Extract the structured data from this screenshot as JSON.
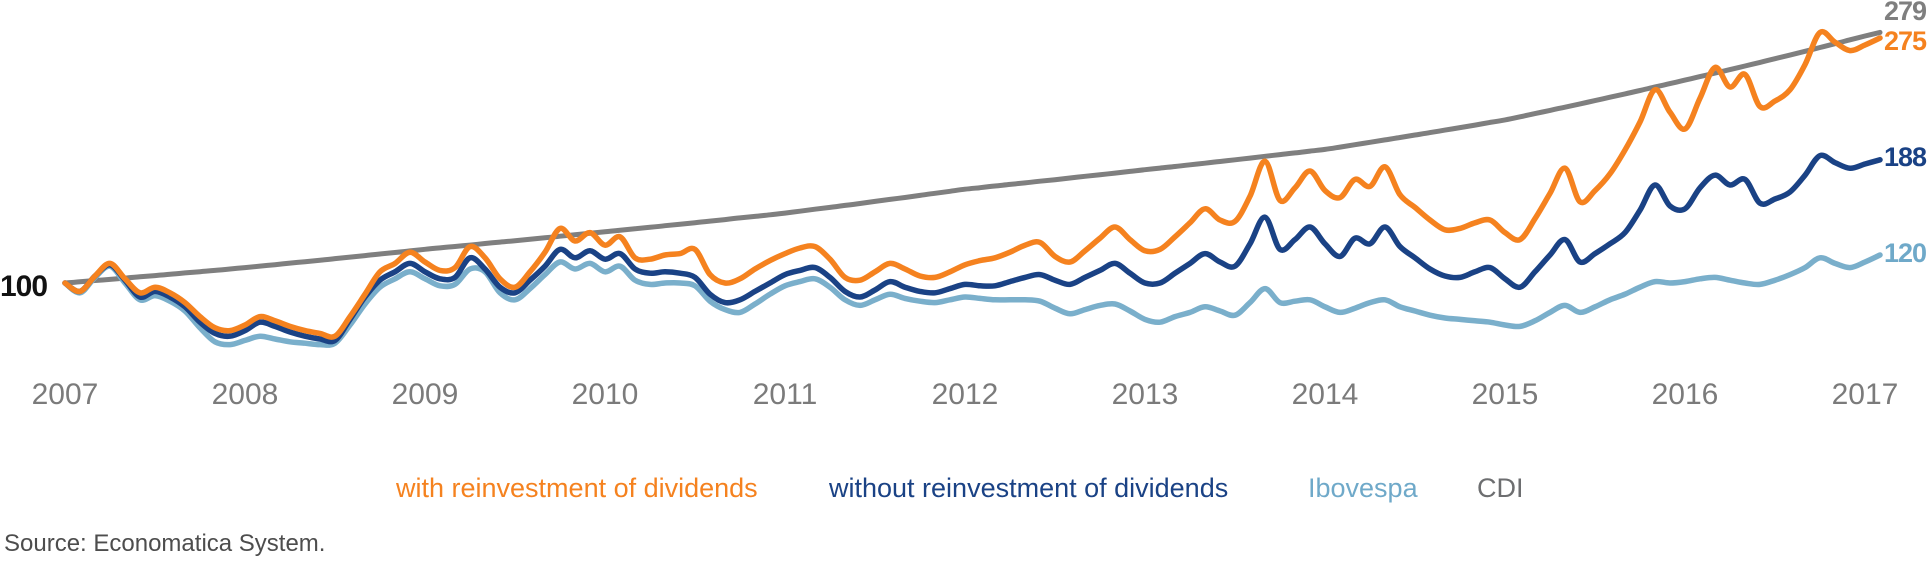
{
  "chart_data": {
    "type": "line",
    "title": "",
    "x_unit": "months",
    "x_range": [
      "2007",
      "2017"
    ],
    "x_tick_labels": [
      "2007",
      "2008",
      "2009",
      "2010",
      "2011",
      "2012",
      "2013",
      "2014",
      "2015",
      "2016",
      "2017"
    ],
    "baseline_label": "100",
    "grid": "off",
    "legend_position": "bottom",
    "series": [
      {
        "name": "CDI",
        "color": "#7f7f7f",
        "end_label": "279",
        "end_value": 279,
        "values": [
          100,
          100.9,
          101.8,
          102.6,
          103.5,
          104.4,
          105.3,
          106.2,
          107.2,
          108.1,
          109,
          110,
          111,
          112.1,
          113.1,
          114.2,
          115.2,
          116.3,
          117.4,
          118.5,
          119.6,
          120.7,
          121.8,
          122.9,
          124.1,
          125.1,
          126.1,
          127.1,
          128.2,
          129.2,
          130.2,
          131.3,
          132.3,
          133.4,
          134.5,
          135.5,
          136.6,
          137.7,
          138.7,
          139.8,
          140.9,
          142,
          143.1,
          144.2,
          145.3,
          146.5,
          147.6,
          148.7,
          149.9,
          151.3,
          152.7,
          154,
          155.4,
          156.8,
          158.3,
          159.7,
          161.1,
          162.6,
          164.1,
          165.5,
          167,
          168.1,
          169.3,
          170.4,
          171.5,
          172.7,
          173.8,
          175,
          176.2,
          177.3,
          178.5,
          179.7,
          180.9,
          182.1,
          183.2,
          184.4,
          185.6,
          186.8,
          188,
          189.2,
          190.5,
          191.7,
          192.9,
          194.2,
          195.4,
          197.1,
          198.8,
          200.5,
          202.2,
          203.9,
          205.7,
          207.4,
          209.2,
          211,
          212.8,
          214.7,
          216.5,
          218.7,
          221,
          223.3,
          225.6,
          227.9,
          230.3,
          232.7,
          235.1,
          237.5,
          240,
          242.4,
          244.9,
          247.4,
          249.9,
          252.4,
          255,
          257.6,
          260.2,
          262.8,
          265.5,
          268.2,
          270.9,
          273.7,
          276.4,
          279
        ]
      },
      {
        "name": "Ibovespa",
        "color": "#7aafcb",
        "end_label": "120",
        "end_value": 120,
        "values": [
          100,
          93,
          104,
          112,
          100,
          88,
          91,
          87,
          80,
          68,
          58,
          56,
          59,
          62,
          60,
          58,
          57,
          56,
          57,
          70,
          85,
          97,
          103,
          108,
          103,
          98,
          99,
          110,
          108,
          93,
          88,
          96,
          106,
          115,
          110,
          114,
          108,
          112,
          102,
          99,
          100,
          100,
          98,
          87,
          81,
          79,
          85,
          92,
          98,
          101,
          103,
          97,
          88,
          84,
          88,
          92,
          89,
          87,
          86,
          88,
          90,
          89,
          88,
          88,
          88,
          87,
          82,
          78,
          81,
          84,
          85,
          80,
          74,
          72,
          76,
          79,
          83,
          80,
          77,
          86,
          96,
          86,
          87,
          88,
          83,
          79,
          82,
          86,
          88,
          83,
          80,
          77,
          75,
          74,
          73,
          72,
          70,
          69,
          73,
          79,
          84,
          79,
          83,
          88,
          92,
          97,
          101,
          100,
          101,
          103,
          104,
          102,
          100,
          99,
          102,
          106,
          111,
          118,
          114,
          111,
          115,
          120
        ]
      },
      {
        "name": "without reinvestment of dividends",
        "color": "#1a4285",
        "end_label": "188",
        "end_value": 188,
        "values": [
          100,
          94,
          105,
          113,
          102,
          90,
          94,
          90,
          83,
          72,
          64,
          62,
          66,
          72,
          69,
          65,
          62,
          60,
          59,
          74,
          90,
          102,
          108,
          114,
          108,
          103,
          104,
          118,
          110,
          97,
          93,
          102,
          112,
          124,
          118,
          123,
          117,
          121,
          110,
          107,
          108,
          107,
          104,
          92,
          86,
          88,
          94,
          100,
          106,
          109,
          111,
          104,
          94,
          90,
          95,
          101,
          97,
          94,
          93,
          96,
          99,
          98,
          98,
          101,
          104,
          106,
          102,
          99,
          104,
          109,
          114,
          107,
          100,
          100,
          107,
          114,
          121,
          115,
          112,
          128,
          147,
          124,
          131,
          140,
          128,
          119,
          132,
          128,
          140,
          126,
          118,
          110,
          105,
          104,
          108,
          111,
          103,
          97,
          108,
          120,
          131,
          115,
          121,
          128,
          136,
          152,
          170,
          155,
          153,
          168,
          177,
          170,
          174,
          157,
          160,
          165,
          177,
          191,
          186,
          182,
          185,
          188
        ]
      },
      {
        "name": "with reinvestment of dividends",
        "color": "#f5821f",
        "end_label": "275",
        "end_value": 275,
        "values": [
          100,
          94,
          105,
          114,
          103,
          93,
          97,
          93,
          86,
          76,
          68,
          66,
          70,
          76,
          73,
          69,
          66,
          64,
          62,
          76,
          92,
          108,
          114,
          122,
          115,
          109,
          111,
          126,
          118,
          103,
          97,
          108,
          122,
          139,
          130,
          136,
          127,
          133,
          118,
          117,
          120,
          121,
          124,
          106,
          100,
          103,
          110,
          116,
          121,
          125,
          126,
          117,
          104,
          102,
          108,
          114,
          110,
          105,
          104,
          108,
          113,
          116,
          118,
          122,
          127,
          129,
          119,
          115,
          123,
          132,
          140,
          131,
          123,
          124,
          133,
          143,
          153,
          145,
          144,
          162,
          187,
          159,
          168,
          180,
          166,
          161,
          174,
          169,
          183,
          163,
          154,
          145,
          138,
          139,
          143,
          145,
          136,
          131,
          146,
          164,
          182,
          158,
          166,
          178,
          195,
          215,
          238,
          222,
          210,
          232,
          254,
          240,
          249,
          226,
          230,
          238,
          256,
          279,
          272,
          266,
          270,
          275
        ]
      }
    ],
    "legend": [
      {
        "label": "with reinvestment of dividends",
        "color": "#f5821f"
      },
      {
        "label": "without reinvestment of dividends",
        "color": "#1a4285"
      },
      {
        "label": "Ibovespa",
        "color": "#7aafcb"
      },
      {
        "label": "CDI",
        "color": "#6d6e70"
      }
    ],
    "source": "Source: Economatica System."
  }
}
